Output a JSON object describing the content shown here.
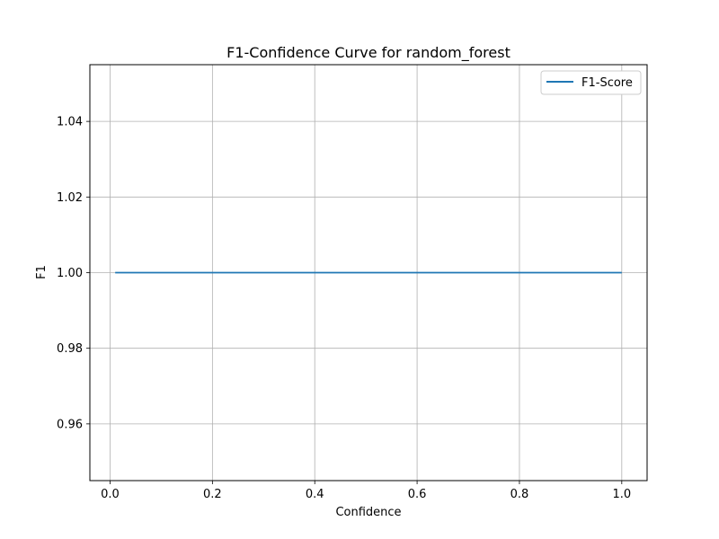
{
  "chart_data": {
    "type": "line",
    "title": "F1-Confidence Curve for random_forest",
    "xlabel": "Confidence",
    "ylabel": "F1",
    "xlim": [
      -0.0395,
      1.0495
    ],
    "ylim": [
      0.945,
      1.055
    ],
    "xticks": [
      0.0,
      0.2,
      0.4,
      0.6,
      0.8,
      1.0
    ],
    "xtick_labels": [
      "0.0",
      "0.2",
      "0.4",
      "0.6",
      "0.8",
      "1.0"
    ],
    "yticks": [
      0.96,
      0.98,
      1.0,
      1.02,
      1.04
    ],
    "ytick_labels": [
      "0.96",
      "0.98",
      "1.00",
      "1.02",
      "1.04"
    ],
    "grid": true,
    "legend_position": "top-right",
    "series": [
      {
        "name": "F1-Score",
        "color": "#1f77b4",
        "x": [
          0.01,
          0.1,
          0.2,
          0.3,
          0.4,
          0.5,
          0.6,
          0.7,
          0.8,
          0.9,
          1.0
        ],
        "y": [
          1.0,
          1.0,
          1.0,
          1.0,
          1.0,
          1.0,
          1.0,
          1.0,
          1.0,
          1.0,
          1.0
        ]
      }
    ]
  }
}
